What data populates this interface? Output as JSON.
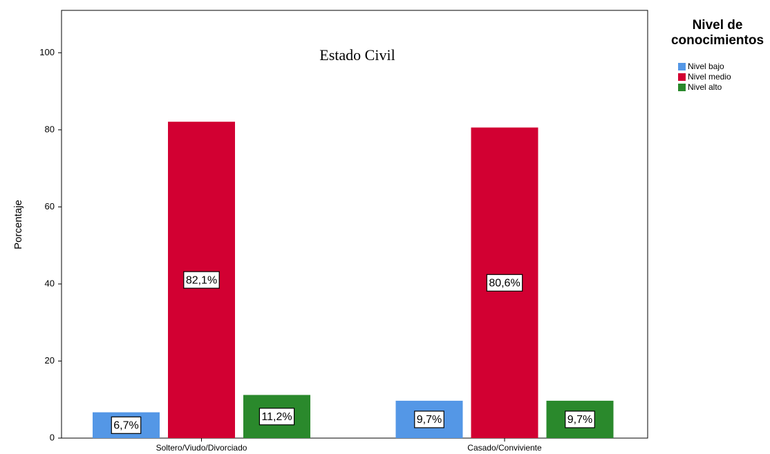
{
  "chart_data": {
    "type": "bar",
    "title": "Estado Civil",
    "y_label": "Porcentaje",
    "legend_title": "Nivel de conocimientos",
    "legend_position": "right",
    "categories": [
      "Soltero/Viudo/Divorciado",
      "Casado/Conviviente"
    ],
    "series": [
      {
        "name": "Nivel bajo",
        "color": "#5497e6",
        "values": [
          6.7,
          9.7
        ],
        "value_labels": [
          "6,7%",
          "9,7%"
        ]
      },
      {
        "name": "Nivel medio",
        "color": "#d20032",
        "values": [
          82.1,
          80.6
        ],
        "value_labels": [
          "82,1%",
          "80,6%"
        ]
      },
      {
        "name": "Nivel alto",
        "color": "#2a892c",
        "values": [
          11.2,
          9.7
        ],
        "value_labels": [
          "11,2%",
          "9,7%"
        ]
      }
    ],
    "ylim": [
      0,
      111
    ],
    "yticks": [
      0,
      20,
      40,
      60,
      80,
      100
    ],
    "grid": false
  }
}
